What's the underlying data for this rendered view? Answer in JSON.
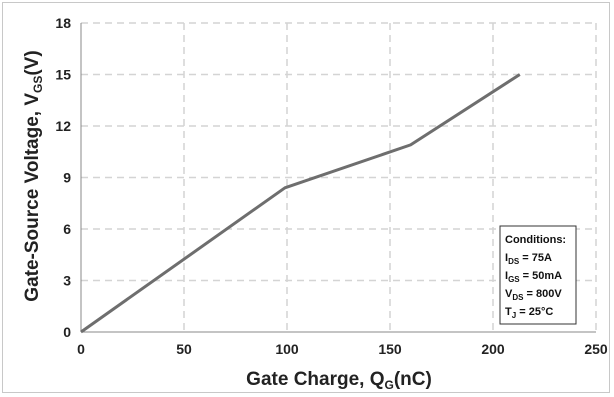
{
  "chart_data": {
    "type": "line",
    "xlabel": "Gate Charge, Q",
    "xlabel_sub": "G",
    "xlabel_unit": "(nC)",
    "ylabel": "Gate-Source Voltage, V",
    "ylabel_sub": "GS",
    "ylabel_unit": "(V)",
    "xlim": [
      0,
      250
    ],
    "ylim": [
      0,
      18
    ],
    "xticks": [
      0,
      50,
      100,
      150,
      200,
      250
    ],
    "yticks": [
      0,
      3,
      6,
      9,
      12,
      15,
      18
    ],
    "grid": true,
    "grid_style": "dashed",
    "line_color": "#6e6e6e",
    "series": [
      {
        "x": [
          0,
          99,
          160,
          213
        ],
        "y": [
          0,
          8.4,
          10.9,
          15
        ]
      }
    ],
    "conditions": {
      "title": "Conditions:",
      "lines": [
        {
          "main": "I",
          "sub": "DS",
          "rest": " = 75A"
        },
        {
          "main": "I",
          "sub": "GS",
          "rest": " = 50mA"
        },
        {
          "main": "V",
          "sub": "DS",
          "rest": " = 800V"
        },
        {
          "main": "T",
          "sub": "J",
          "rest": " = 25°C"
        }
      ]
    }
  }
}
